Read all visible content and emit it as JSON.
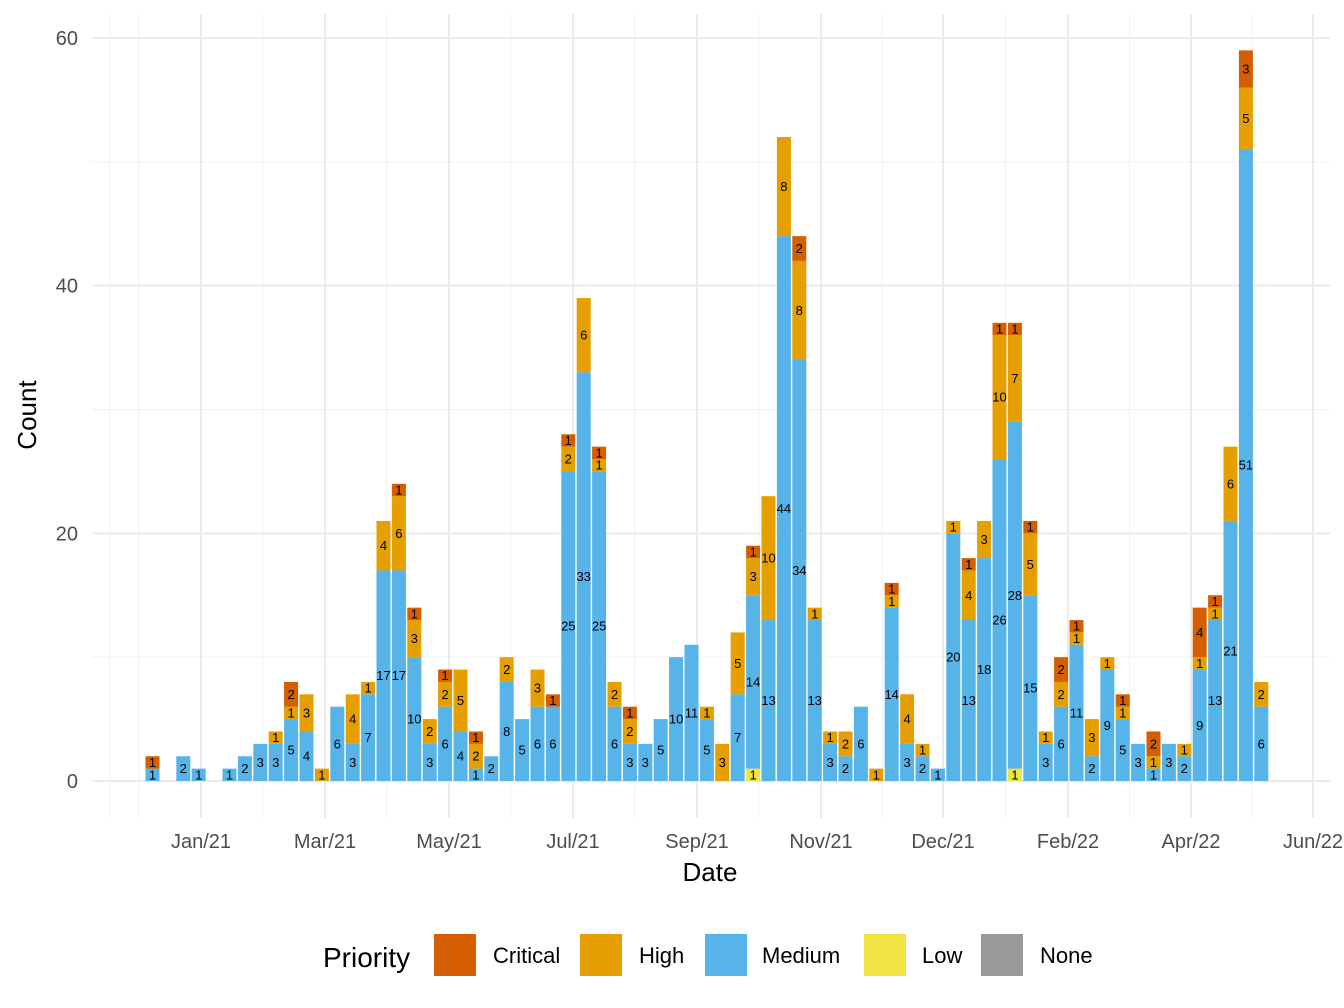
{
  "chart_data": {
    "type": "bar",
    "stacked": true,
    "xlabel": "Date",
    "ylabel": "Count",
    "ylim": [
      0,
      60
    ],
    "yticks": [
      0,
      20,
      40,
      60
    ],
    "x_ticks": [
      "Jan/21",
      "Mar/21",
      "May/21",
      "Jul/21",
      "Sep/21",
      "Nov/21",
      "Dec/21",
      "Feb/22",
      "Apr/22",
      "Jun/22"
    ],
    "grid": true,
    "legend": {
      "title": "Priority",
      "position": "bottom"
    },
    "series": [
      {
        "name": "Critical",
        "color": "#D55E00"
      },
      {
        "name": "High",
        "color": "#E69F00"
      },
      {
        "name": "Medium",
        "color": "#56B4E9"
      },
      {
        "name": "Low",
        "color": "#F0E442"
      },
      {
        "name": "None",
        "color": "#999999"
      }
    ],
    "bars": [
      {
        "week": 1,
        "low": 0,
        "medium": 1,
        "high": 0,
        "critical": 1
      },
      {
        "week": 3,
        "low": 0,
        "medium": 2,
        "high": 0,
        "critical": 0
      },
      {
        "week": 4,
        "low": 0,
        "medium": 1,
        "high": 0,
        "critical": 0
      },
      {
        "week": 6,
        "low": 0,
        "medium": 1,
        "high": 0,
        "critical": 0
      },
      {
        "week": 7,
        "low": 0,
        "medium": 2,
        "high": 0,
        "critical": 0
      },
      {
        "week": 8,
        "low": 0,
        "medium": 3,
        "high": 0,
        "critical": 0
      },
      {
        "week": 9,
        "low": 0,
        "medium": 3,
        "high": 1,
        "critical": 0
      },
      {
        "week": 10,
        "low": 0,
        "medium": 5,
        "high": 1,
        "critical": 2
      },
      {
        "week": 11,
        "low": 0,
        "medium": 4,
        "high": 3,
        "critical": 0
      },
      {
        "week": 12,
        "low": 0,
        "medium": 0,
        "high": 1,
        "critical": 0
      },
      {
        "week": 13,
        "low": 0,
        "medium": 6,
        "high": 0,
        "critical": 0
      },
      {
        "week": 14,
        "low": 0,
        "medium": 3,
        "high": 4,
        "critical": 0
      },
      {
        "week": 15,
        "low": 0,
        "medium": 7,
        "high": 1,
        "critical": 0
      },
      {
        "week": 16,
        "low": 0,
        "medium": 17,
        "high": 4,
        "critical": 0
      },
      {
        "week": 17,
        "low": 0,
        "medium": 17,
        "high": 6,
        "critical": 1
      },
      {
        "week": 18,
        "low": 0,
        "medium": 10,
        "high": 3,
        "critical": 1
      },
      {
        "week": 19,
        "low": 0,
        "medium": 3,
        "high": 2,
        "critical": 0
      },
      {
        "week": 20,
        "low": 0,
        "medium": 6,
        "high": 2,
        "critical": 1
      },
      {
        "week": 21,
        "low": 0,
        "medium": 4,
        "high": 5,
        "critical": 0
      },
      {
        "week": 22,
        "low": 0,
        "medium": 1,
        "high": 2,
        "critical": 1
      },
      {
        "week": 23,
        "low": 0,
        "medium": 2,
        "high": 0,
        "critical": 0
      },
      {
        "week": 24,
        "low": 0,
        "medium": 8,
        "high": 2,
        "critical": 0
      },
      {
        "week": 25,
        "low": 0,
        "medium": 5,
        "high": 0,
        "critical": 0
      },
      {
        "week": 26,
        "low": 0,
        "medium": 6,
        "high": 3,
        "critical": 0
      },
      {
        "week": 27,
        "low": 0,
        "medium": 6,
        "high": 0,
        "critical": 1
      },
      {
        "week": 28,
        "low": 0,
        "medium": 25,
        "high": 2,
        "critical": 1
      },
      {
        "week": 29,
        "low": 0,
        "medium": 33,
        "high": 6,
        "critical": 0
      },
      {
        "week": 30,
        "low": 0,
        "medium": 25,
        "high": 1,
        "critical": 1
      },
      {
        "week": 31,
        "low": 0,
        "medium": 6,
        "high": 2,
        "critical": 0
      },
      {
        "week": 32,
        "low": 0,
        "medium": 3,
        "high": 2,
        "critical": 1
      },
      {
        "week": 33,
        "low": 0,
        "medium": 3,
        "high": 0,
        "critical": 0
      },
      {
        "week": 34,
        "low": 0,
        "medium": 5,
        "high": 0,
        "critical": 0
      },
      {
        "week": 35,
        "low": 0,
        "medium": 10,
        "high": 0,
        "critical": 0
      },
      {
        "week": 36,
        "low": 0,
        "medium": 11,
        "high": 0,
        "critical": 0
      },
      {
        "week": 37,
        "low": 0,
        "medium": 5,
        "high": 1,
        "critical": 0
      },
      {
        "week": 38,
        "low": 0,
        "medium": 0,
        "high": 3,
        "critical": 0
      },
      {
        "week": 39,
        "low": 0,
        "medium": 7,
        "high": 5,
        "critical": 0
      },
      {
        "week": 40,
        "low": 1,
        "medium": 14,
        "high": 3,
        "critical": 1
      },
      {
        "week": 41,
        "low": 0,
        "medium": 13,
        "high": 10,
        "critical": 0
      },
      {
        "week": 42,
        "low": 0,
        "medium": 44,
        "high": 8,
        "critical": 0
      },
      {
        "week": 43,
        "low": 0,
        "medium": 34,
        "high": 8,
        "critical": 2
      },
      {
        "week": 44,
        "low": 0,
        "medium": 13,
        "high": 1,
        "critical": 0
      },
      {
        "week": 45,
        "low": 0,
        "medium": 3,
        "high": 1,
        "critical": 0
      },
      {
        "week": 46,
        "low": 0,
        "medium": 2,
        "high": 2,
        "critical": 0
      },
      {
        "week": 47,
        "low": 0,
        "medium": 6,
        "high": 0,
        "critical": 0
      },
      {
        "week": 48,
        "low": 0,
        "medium": 0,
        "high": 1,
        "critical": 0
      },
      {
        "week": 49,
        "low": 0,
        "medium": 14,
        "high": 1,
        "critical": 1
      },
      {
        "week": 50,
        "low": 0,
        "medium": 3,
        "high": 4,
        "critical": 0
      },
      {
        "week": 51,
        "low": 0,
        "medium": 2,
        "high": 1,
        "critical": 0
      },
      {
        "week": 52,
        "low": 0,
        "medium": 1,
        "high": 0,
        "critical": 0
      },
      {
        "week": 53,
        "low": 0,
        "medium": 20,
        "high": 1,
        "critical": 0
      },
      {
        "week": 54,
        "low": 0,
        "medium": 13,
        "high": 4,
        "critical": 1
      },
      {
        "week": 55,
        "low": 0,
        "medium": 18,
        "high": 3,
        "critical": 0
      },
      {
        "week": 56,
        "low": 0,
        "medium": 26,
        "high": 10,
        "critical": 1
      },
      {
        "week": 57,
        "low": 1,
        "medium": 28,
        "high": 7,
        "critical": 1
      },
      {
        "week": 58,
        "low": 0,
        "medium": 15,
        "high": 5,
        "critical": 1
      },
      {
        "week": 59,
        "low": 0,
        "medium": 3,
        "high": 1,
        "critical": 0
      },
      {
        "week": 60,
        "low": 0,
        "medium": 6,
        "high": 2,
        "critical": 2
      },
      {
        "week": 61,
        "low": 0,
        "medium": 11,
        "high": 1,
        "critical": 1
      },
      {
        "week": 62,
        "low": 0,
        "medium": 2,
        "high": 3,
        "critical": 0
      },
      {
        "week": 63,
        "low": 0,
        "medium": 9,
        "high": 1,
        "critical": 0
      },
      {
        "week": 64,
        "low": 0,
        "medium": 5,
        "high": 1,
        "critical": 1
      },
      {
        "week": 65,
        "low": 0,
        "medium": 3,
        "high": 0,
        "critical": 0
      },
      {
        "week": 66,
        "low": 0,
        "medium": 1,
        "high": 1,
        "critical": 2
      },
      {
        "week": 67,
        "low": 0,
        "medium": 3,
        "high": 0,
        "critical": 0
      },
      {
        "week": 68,
        "low": 0,
        "medium": 2,
        "high": 1,
        "critical": 0
      },
      {
        "week": 69,
        "low": 0,
        "medium": 9,
        "high": 1,
        "critical": 4
      },
      {
        "week": 70,
        "low": 0,
        "medium": 13,
        "high": 1,
        "critical": 1
      },
      {
        "week": 71,
        "low": 0,
        "medium": 21,
        "high": 6,
        "critical": 0
      },
      {
        "week": 72,
        "low": 0,
        "medium": 51,
        "high": 5,
        "critical": 3
      },
      {
        "week": 73,
        "low": 0,
        "medium": 6,
        "high": 2,
        "critical": 0
      }
    ]
  }
}
